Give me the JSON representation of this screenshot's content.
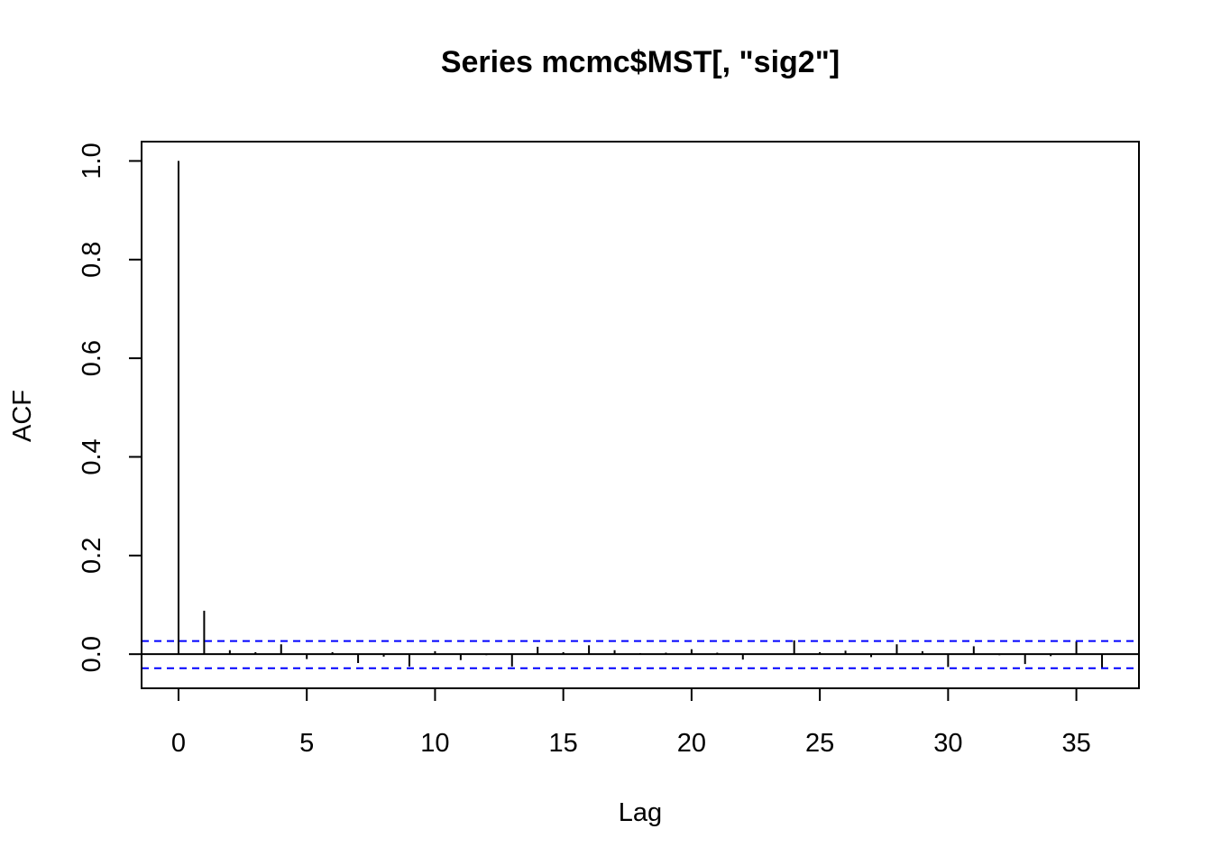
{
  "chart_data": {
    "type": "bar",
    "title": "Series  mcmc$MST[, \"sig2\"]",
    "xlabel": "Lag",
    "ylabel": "ACF",
    "xlim": [
      -1.44,
      37.44
    ],
    "ylim": [
      -0.0692,
      1.0392
    ],
    "x_ticks": [
      0,
      5,
      10,
      15,
      20,
      25,
      30,
      35
    ],
    "y_ticks": [
      0.0,
      0.2,
      0.4,
      0.6,
      0.8,
      1.0
    ],
    "x_tick_labels": [
      "0",
      "5",
      "10",
      "15",
      "20",
      "25",
      "30",
      "35"
    ],
    "y_tick_labels": [
      "0.0",
      "0.2",
      "0.4",
      "0.6",
      "0.8",
      "1.0"
    ],
    "confidence_bounds": [
      0.0265,
      -0.0285
    ],
    "bound_color": "#0000ff",
    "spike_color": "#000000",
    "grid": false,
    "legend": "none",
    "lags": [
      0,
      1,
      2,
      3,
      4,
      5,
      6,
      7,
      8,
      9,
      10,
      11,
      12,
      13,
      14,
      15,
      16,
      17,
      18,
      19,
      20,
      21,
      22,
      23,
      24,
      25,
      26,
      27,
      28,
      29,
      30,
      31,
      32,
      33,
      34,
      35,
      36
    ],
    "acf": [
      1.0,
      0.088,
      0.008,
      0.004,
      0.02,
      -0.01,
      0.004,
      -0.018,
      -0.005,
      -0.025,
      0.006,
      -0.012,
      -0.002,
      -0.025,
      0.015,
      0.004,
      0.018,
      0.008,
      0.002,
      0.003,
      0.01,
      0.003,
      -0.011,
      -0.001,
      0.028,
      0.004,
      0.007,
      -0.006,
      0.02,
      0.006,
      -0.026,
      0.016,
      -0.002,
      -0.02,
      -0.004,
      0.026,
      -0.03
    ]
  }
}
